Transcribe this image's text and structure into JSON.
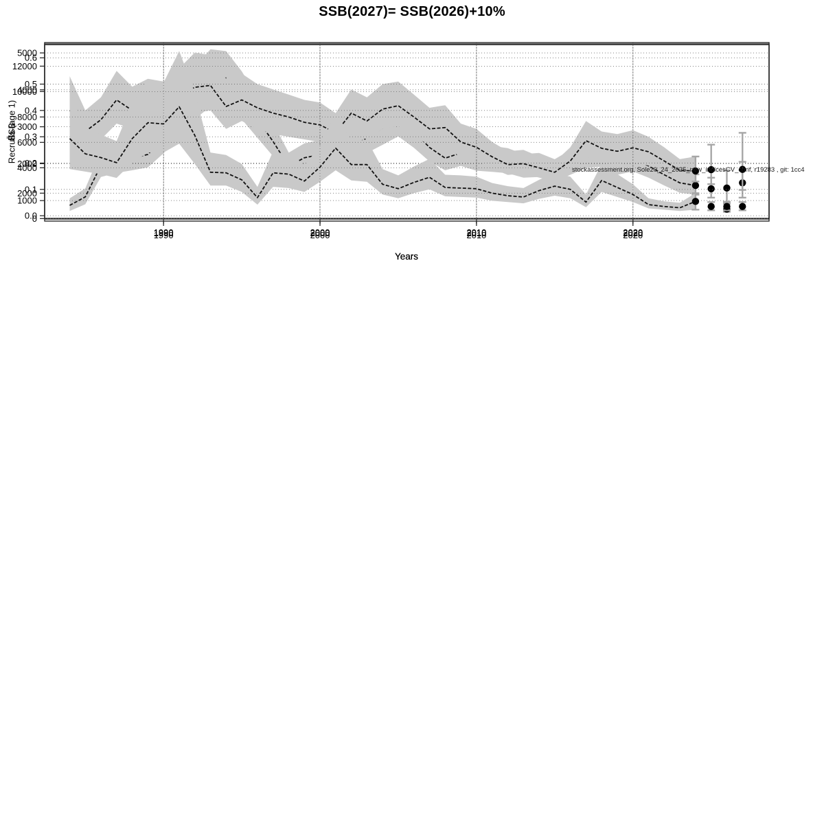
{
  "title": "SSB(2027)= SSB(2026)+10%",
  "note": "stockassessment.org, Sole20_24_2025_new_indicesCV_conf, r19283 , git: 1cc4",
  "colors": {
    "band": "#c9c9c9",
    "median_line": "#111111",
    "grid": "#707070",
    "frame": "#2a2a2a",
    "forecast_point": "#000000",
    "error_bar": "#a6a6a6"
  },
  "chart_data": [
    {
      "type": "line",
      "title": "",
      "xlabel": "Years",
      "ylabel": "SSB",
      "legend": "none",
      "grid": "dotted",
      "band_legend": "confidence band",
      "xlim": [
        1982.4,
        2028.7
      ],
      "ylim": [
        500,
        5280
      ],
      "xtick_values": [
        1990,
        2000,
        2010,
        2020
      ],
      "xtick_labels": [
        "1990",
        "2000",
        "2010",
        "2020"
      ],
      "ytick_values": [
        1000,
        2000,
        3000,
        4000,
        5000
      ],
      "ytick_labels": [
        "1000",
        "2000",
        "3000",
        "4000",
        "5000"
      ],
      "years": [
        1984,
        1985,
        1986,
        1987,
        1988,
        1989,
        1990,
        1991,
        1992,
        1993,
        1994,
        1995,
        1996,
        1997,
        1998,
        1999,
        2000,
        2001,
        2002,
        2003,
        2004,
        2005,
        2006,
        2007,
        2008,
        2009,
        2010,
        2011,
        2012,
        2013,
        2014,
        2015,
        2016,
        2017,
        2018,
        2019,
        2020,
        2021,
        2022,
        2023
      ],
      "median": [
        870,
        1100,
        1950,
        2070,
        2150,
        2250,
        2700,
        3360,
        3830,
        4270,
        4320,
        3800,
        3200,
        2600,
        1930,
        2160,
        2240,
        2150,
        2440,
        2700,
        2960,
        3230,
        2870,
        2440,
        2150,
        2290,
        2140,
        2100,
        2050,
        1910,
        1940,
        1800,
        2010,
        2220,
        2270,
        2020,
        2130,
        1940,
        1700,
        1480
      ],
      "band_lower": [
        720,
        900,
        1640,
        1750,
        1820,
        1900,
        2280,
        2820,
        3200,
        3550,
        3650,
        3200,
        2700,
        2200,
        1640,
        1830,
        1900,
        1820,
        2060,
        2290,
        2510,
        2740,
        2430,
        2060,
        1820,
        1940,
        1810,
        1780,
        1740,
        1620,
        1640,
        1520,
        1700,
        1880,
        1920,
        1700,
        1790,
        1620,
        1410,
        1210
      ],
      "band_upper": [
        1060,
        1330,
        2320,
        2450,
        2560,
        2670,
        3200,
        3960,
        4620,
        5100,
        5050,
        4500,
        3800,
        3100,
        2300,
        2550,
        2640,
        2540,
        2880,
        3180,
        3490,
        3800,
        3390,
        2880,
        2540,
        2700,
        2530,
        2480,
        2420,
        2260,
        2290,
        2120,
        2370,
        2620,
        2680,
        2390,
        2530,
        2310,
        2040,
        1800
      ],
      "forecast": {
        "years": [
          2024,
          2025,
          2026,
          2027
        ],
        "estimate": [
          1410,
          1320,
          1340,
          1480
        ],
        "lower": [
          1160,
          1080,
          970,
          1080
        ],
        "upper": [
          1710,
          1620,
          1820,
          2050
        ]
      }
    },
    {
      "type": "line",
      "title": "",
      "xlabel": "Years",
      "ylabel": "F̄₄₋₈",
      "legend": "none",
      "grid": "dotted",
      "band_legend": "confidence band",
      "xlim": [
        1982.4,
        2028.7
      ],
      "ylim": [
        -0.01,
        0.65
      ],
      "xtick_values": [
        1990,
        2000,
        2010,
        2020
      ],
      "xtick_labels": [
        "1990",
        "2000",
        "2010",
        "2020"
      ],
      "ytick_values": [
        0.0,
        0.1,
        0.2,
        0.3,
        0.4,
        0.5,
        0.6
      ],
      "ytick_labels": [
        "0.0",
        "0.1",
        "0.2",
        "0.3",
        "0.4",
        "0.5",
        "0.6"
      ],
      "years": [
        1984,
        1985,
        1986,
        1987,
        1988,
        1989,
        1990,
        1991,
        1992,
        1993,
        1994,
        1995,
        1996,
        1997,
        1998,
        1999,
        2000,
        2001,
        2002,
        2003,
        2004,
        2005,
        2006,
        2007,
        2008,
        2009,
        2010,
        2011,
        2012,
        2013,
        2014,
        2015,
        2016,
        2017,
        2018,
        2019,
        2020,
        2021,
        2022,
        2023
      ],
      "median": [
        0.4,
        0.32,
        0.365,
        0.44,
        0.4,
        0.42,
        0.415,
        0.458,
        0.488,
        0.495,
        0.415,
        0.44,
        0.41,
        0.39,
        0.375,
        0.355,
        0.345,
        0.315,
        0.39,
        0.36,
        0.405,
        0.418,
        0.375,
        0.33,
        0.335,
        0.28,
        0.26,
        0.224,
        0.194,
        0.198,
        0.182,
        0.165,
        0.208,
        0.285,
        0.256,
        0.245,
        0.258,
        0.243,
        0.208,
        0.172
      ],
      "band_lower": [
        0.3,
        0.25,
        0.29,
        0.35,
        0.33,
        0.34,
        0.34,
        0.37,
        0.39,
        0.4,
        0.33,
        0.36,
        0.33,
        0.31,
        0.3,
        0.29,
        0.28,
        0.25,
        0.31,
        0.29,
        0.33,
        0.34,
        0.3,
        0.27,
        0.27,
        0.22,
        0.21,
        0.18,
        0.155,
        0.16,
        0.145,
        0.13,
        0.165,
        0.225,
        0.2,
        0.195,
        0.205,
        0.19,
        0.165,
        0.135
      ],
      "band_upper": [
        0.53,
        0.4,
        0.45,
        0.55,
        0.49,
        0.52,
        0.51,
        0.56,
        0.62,
        0.61,
        0.52,
        0.54,
        0.5,
        0.48,
        0.46,
        0.44,
        0.43,
        0.39,
        0.48,
        0.45,
        0.5,
        0.51,
        0.46,
        0.41,
        0.42,
        0.35,
        0.33,
        0.28,
        0.245,
        0.25,
        0.225,
        0.205,
        0.26,
        0.36,
        0.32,
        0.31,
        0.325,
        0.3,
        0.26,
        0.215
      ],
      "forecast": {
        "years": [
          2024,
          2025,
          2026,
          2027
        ],
        "estimate": [
          0.17,
          0.175,
          0.025,
          0.176
        ],
        "lower": [
          0.13,
          0.12,
          0.015,
          0.098
        ],
        "upper": [
          0.225,
          0.27,
          0.046,
          0.315
        ]
      }
    },
    {
      "type": "line",
      "title": "",
      "xlabel": "Years",
      "ylabel": "Recruits (age 1)",
      "legend": "none",
      "grid": "dotted",
      "band_legend": "confidence band",
      "xlim": [
        1982.4,
        2028.7
      ],
      "ylim": [
        -200,
        13750
      ],
      "xtick_values": [
        1990,
        2000,
        2010,
        2020
      ],
      "xtick_labels": [
        "1990",
        "2000",
        "2010",
        "2020"
      ],
      "ytick_values": [
        0,
        2000,
        4000,
        6000,
        8000,
        10000,
        12000
      ],
      "ytick_labels": [
        "0",
        "2000",
        "4000",
        "6000",
        "8000",
        "10000",
        "12000"
      ],
      "years": [
        1984,
        1985,
        1986,
        1987,
        1988,
        1989,
        1990,
        1991,
        1992,
        1993,
        1994,
        1995,
        1996,
        1997,
        1998,
        1999,
        2000,
        2001,
        2002,
        2003,
        2004,
        2005,
        2006,
        2007,
        2008,
        2009,
        2010,
        2011,
        2012,
        2013,
        2014,
        2015,
        2016,
        2017,
        2018,
        2019,
        2020,
        2021,
        2022,
        2023
      ],
      "median": [
        6300,
        5100,
        4800,
        4400,
        6300,
        7550,
        7450,
        8800,
        6550,
        3650,
        3600,
        3050,
        1650,
        3600,
        3500,
        2950,
        4050,
        5550,
        4250,
        4250,
        2700,
        2350,
        2850,
        3250,
        2450,
        2400,
        2350,
        2000,
        1800,
        1700,
        2200,
        2550,
        2300,
        1300,
        3000,
        2450,
        1900,
        1100,
        950,
        850
      ],
      "band_lower": [
        3900,
        3700,
        3500,
        3200,
        4400,
        5200,
        5200,
        5900,
        4300,
        2600,
        2600,
        2100,
        1100,
        2500,
        2400,
        2100,
        2900,
        3800,
        3000,
        2900,
        1900,
        1600,
        2000,
        2300,
        1750,
        1700,
        1650,
        1400,
        1300,
        1200,
        1550,
        1800,
        1600,
        900,
        2100,
        1700,
        1300,
        800,
        700,
        600
      ],
      "band_upper": [
        10000,
        7100,
        6600,
        6100,
        9100,
        10900,
        10700,
        13200,
        9900,
        5200,
        5000,
        4300,
        2500,
        5300,
        5000,
        4200,
        5700,
        8300,
        6100,
        6200,
        3900,
        3400,
        4100,
        4700,
        3450,
        3400,
        3300,
        2800,
        2550,
        2400,
        3050,
        3600,
        3300,
        1900,
        4300,
        3500,
        2700,
        1600,
        1350,
        1250
      ],
      "forecast": {
        "years": [
          2024,
          2025,
          2026,
          2027
        ],
        "estimate": [
          1350,
          950,
          950,
          950
        ],
        "lower": [
          700,
          650,
          650,
          650
        ],
        "upper": [
          2000,
          1300,
          1300,
          1300
        ]
      }
    }
  ]
}
